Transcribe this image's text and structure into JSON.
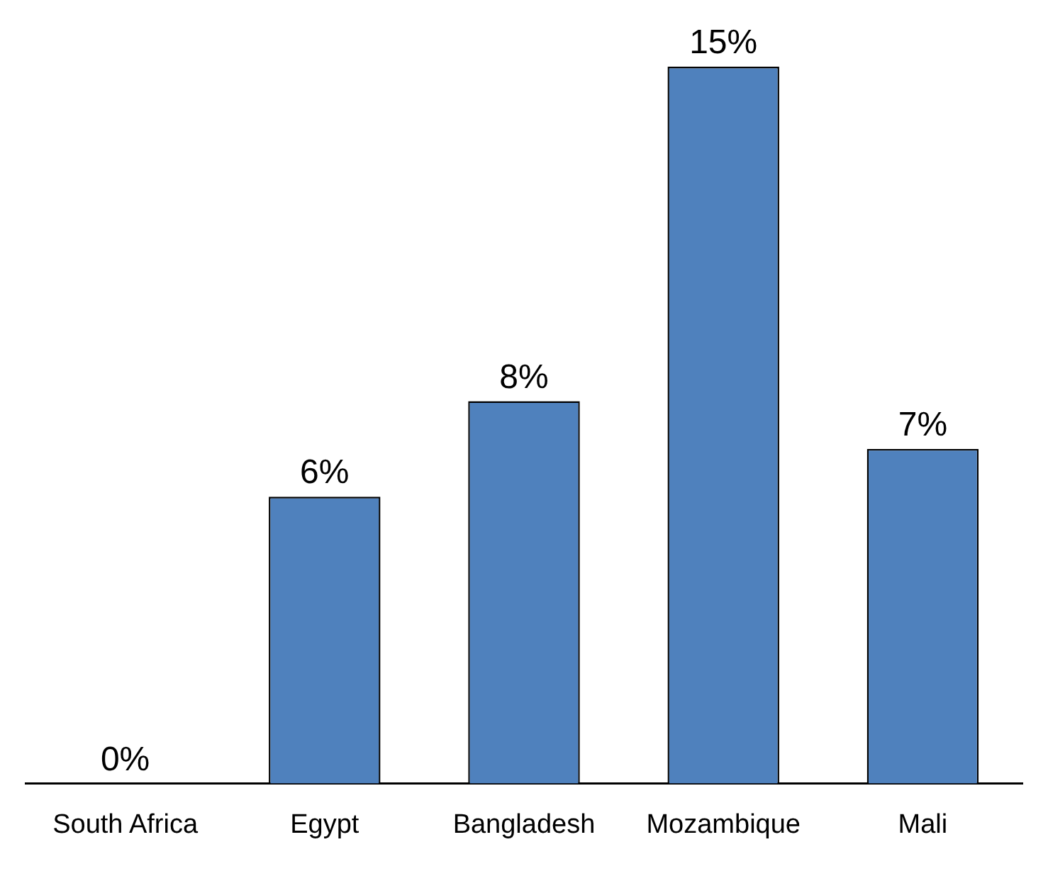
{
  "chart_data": {
    "type": "bar",
    "categories": [
      "South Africa",
      "Egypt",
      "Bangladesh",
      "Mozambique",
      "Mali"
    ],
    "values": [
      0,
      6,
      8,
      15,
      7
    ],
    "value_labels": [
      "0%",
      "6%",
      "8%",
      "15%",
      "7%"
    ],
    "color": "#4f81bd",
    "ylim": [
      0,
      15
    ],
    "tick_labels": "x",
    "grid": false,
    "legend": false
  }
}
